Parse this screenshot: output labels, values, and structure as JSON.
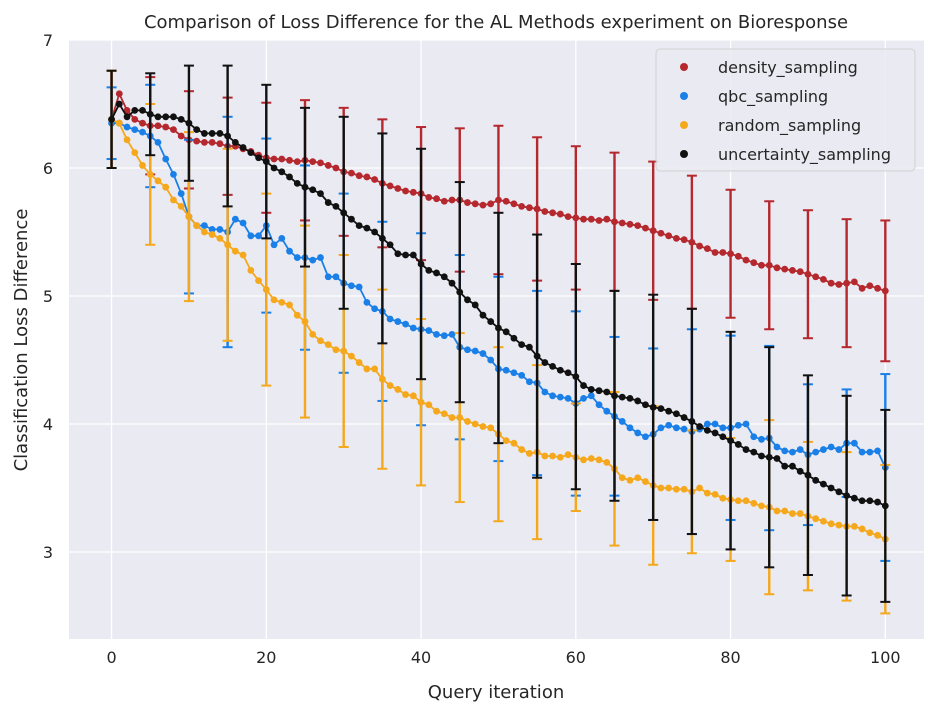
{
  "chart_data": {
    "type": "line",
    "title": "Comparison of Loss Difference for the AL Methods experiment on Bioresponse",
    "xlabel": "Query iteration",
    "ylabel": "Classification Loss Difference",
    "xlim": [
      -5.5,
      105
    ],
    "ylim": [
      2.32,
      7.0
    ],
    "xticks": [
      0,
      20,
      40,
      60,
      80,
      100
    ],
    "yticks": [
      3,
      4,
      5,
      6,
      7
    ],
    "grid": true,
    "legend_position": "top-right",
    "errorbar_every": 5,
    "series": [
      {
        "name": "density_sampling",
        "color": "#b5282e",
        "x": [
          0,
          1,
          2,
          3,
          4,
          5,
          6,
          7,
          8,
          9,
          10,
          11,
          12,
          13,
          14,
          15,
          16,
          17,
          18,
          19,
          20,
          21,
          22,
          23,
          24,
          25,
          26,
          27,
          28,
          29,
          30,
          31,
          32,
          33,
          34,
          35,
          36,
          37,
          38,
          39,
          40,
          41,
          42,
          43,
          44,
          45,
          46,
          47,
          48,
          49,
          50,
          51,
          52,
          53,
          54,
          55,
          56,
          57,
          58,
          59,
          60,
          61,
          62,
          63,
          64,
          65,
          66,
          67,
          68,
          69,
          70,
          71,
          72,
          73,
          74,
          75,
          76,
          77,
          78,
          79,
          80,
          81,
          82,
          83,
          84,
          85,
          86,
          87,
          88,
          89,
          90,
          91,
          92,
          93,
          94,
          95,
          96,
          97,
          98,
          99,
          100
        ],
        "y": [
          6.38,
          6.58,
          6.45,
          6.38,
          6.35,
          6.33,
          6.33,
          6.32,
          6.3,
          6.25,
          6.22,
          6.21,
          6.2,
          6.2,
          6.19,
          6.17,
          6.17,
          6.15,
          6.13,
          6.1,
          6.08,
          6.07,
          6.07,
          6.06,
          6.05,
          6.06,
          6.05,
          6.04,
          6.02,
          6.0,
          5.97,
          5.96,
          5.94,
          5.93,
          5.91,
          5.88,
          5.86,
          5.84,
          5.82,
          5.81,
          5.8,
          5.77,
          5.76,
          5.74,
          5.75,
          5.75,
          5.73,
          5.72,
          5.71,
          5.72,
          5.75,
          5.74,
          5.72,
          5.7,
          5.69,
          5.68,
          5.66,
          5.65,
          5.64,
          5.62,
          5.61,
          5.6,
          5.6,
          5.59,
          5.6,
          5.58,
          5.57,
          5.56,
          5.55,
          5.53,
          5.51,
          5.49,
          5.47,
          5.45,
          5.44,
          5.42,
          5.39,
          5.37,
          5.34,
          5.34,
          5.33,
          5.31,
          5.28,
          5.26,
          5.24,
          5.24,
          5.22,
          5.21,
          5.2,
          5.19,
          5.17,
          5.15,
          5.13,
          5.1,
          5.09,
          5.1,
          5.11,
          5.06,
          5.08,
          5.06,
          5.04
        ],
        "err": [
          0.38,
          0.32,
          0.35,
          0.35,
          0.35,
          0.38,
          0.38,
          0.38,
          0.38,
          0.38,
          0.38,
          0.37,
          0.36,
          0.38,
          0.39,
          0.38,
          0.4,
          0.4,
          0.42,
          0.42,
          0.43,
          0.44,
          0.44,
          0.46,
          0.46,
          0.47,
          0.48,
          0.49,
          0.5,
          0.5,
          0.5,
          0.5,
          0.5,
          0.5,
          0.5,
          0.5,
          0.52,
          0.52,
          0.52,
          0.52,
          0.52,
          0.54,
          0.54,
          0.54,
          0.56,
          0.56,
          0.58,
          0.58,
          0.58,
          0.58,
          0.58,
          0.56,
          0.56,
          0.56,
          0.56,
          0.56,
          0.56,
          0.56,
          0.56,
          0.56,
          0.56,
          0.54,
          0.54,
          0.54,
          0.54,
          0.54,
          0.54,
          0.54,
          0.54,
          0.54,
          0.54,
          0.52,
          0.52,
          0.52,
          0.52,
          0.52,
          0.52,
          0.52,
          0.5,
          0.5,
          0.5,
          0.5,
          0.5,
          0.5,
          0.5,
          0.5,
          0.5,
          0.5,
          0.5,
          0.5,
          0.5,
          0.5,
          0.5,
          0.5,
          0.5,
          0.5,
          0.5,
          0.5,
          0.5,
          0.55,
          0.55
        ]
      },
      {
        "name": "qbc_sampling",
        "color": "#1a80e8",
        "x": [
          0,
          1,
          2,
          3,
          4,
          5,
          6,
          7,
          8,
          9,
          10,
          11,
          12,
          13,
          14,
          15,
          16,
          17,
          18,
          19,
          20,
          21,
          22,
          23,
          24,
          25,
          26,
          27,
          28,
          29,
          30,
          31,
          32,
          33,
          34,
          35,
          36,
          37,
          38,
          39,
          40,
          41,
          42,
          43,
          44,
          45,
          46,
          47,
          48,
          49,
          50,
          51,
          52,
          53,
          54,
          55,
          56,
          57,
          58,
          59,
          60,
          61,
          62,
          63,
          64,
          65,
          66,
          67,
          68,
          69,
          70,
          71,
          72,
          73,
          74,
          75,
          76,
          77,
          78,
          79,
          80,
          81,
          82,
          83,
          84,
          85,
          86,
          87,
          88,
          89,
          90,
          91,
          92,
          93,
          94,
          95,
          96,
          97,
          98,
          99,
          100
        ],
        "y": [
          6.35,
          6.35,
          6.32,
          6.3,
          6.28,
          6.25,
          6.2,
          6.07,
          5.95,
          5.8,
          5.62,
          5.55,
          5.55,
          5.52,
          5.52,
          5.5,
          5.6,
          5.57,
          5.47,
          5.47,
          5.55,
          5.4,
          5.45,
          5.35,
          5.3,
          5.3,
          5.28,
          5.3,
          5.15,
          5.15,
          5.1,
          5.08,
          5.07,
          4.95,
          4.9,
          4.88,
          4.82,
          4.8,
          4.78,
          4.75,
          4.74,
          4.73,
          4.7,
          4.69,
          4.7,
          4.6,
          4.58,
          4.57,
          4.55,
          4.5,
          4.43,
          4.42,
          4.4,
          4.38,
          4.33,
          4.32,
          4.25,
          4.22,
          4.21,
          4.2,
          4.16,
          4.2,
          4.22,
          4.15,
          4.1,
          4.06,
          4.02,
          3.97,
          3.93,
          3.9,
          3.92,
          3.97,
          3.99,
          3.97,
          3.96,
          3.94,
          3.96,
          4.0,
          4.0,
          3.97,
          3.97,
          3.99,
          4.0,
          3.9,
          3.88,
          3.89,
          3.82,
          3.79,
          3.78,
          3.8,
          3.76,
          3.78,
          3.8,
          3.82,
          3.8,
          3.85,
          3.85,
          3.78,
          3.78,
          3.79,
          3.66
        ],
        "err": [
          0.28,
          0.28,
          0.3,
          0.32,
          0.35,
          0.4,
          0.42,
          0.45,
          0.5,
          0.55,
          0.6,
          0.62,
          0.65,
          0.7,
          0.8,
          0.9,
          0.85,
          0.8,
          0.75,
          0.7,
          0.68,
          0.7,
          0.72,
          0.72,
          0.72,
          0.72,
          0.7,
          0.7,
          0.7,
          0.7,
          0.7,
          0.7,
          0.7,
          0.7,
          0.7,
          0.7,
          0.8,
          0.8,
          0.75,
          0.75,
          0.75,
          0.75,
          0.75,
          0.72,
          0.72,
          0.72,
          0.72,
          0.72,
          0.72,
          0.72,
          0.72,
          0.7,
          0.7,
          0.7,
          0.7,
          0.72,
          0.72,
          0.72,
          0.72,
          0.72,
          0.72,
          0.72,
          0.7,
          0.7,
          0.7,
          0.62,
          0.65,
          0.67,
          0.67,
          0.67,
          0.67,
          0.67,
          0.67,
          0.67,
          0.67,
          0.8,
          0.72,
          0.72,
          0.7,
          0.7,
          0.72,
          0.72,
          0.72,
          0.72,
          0.72,
          0.72,
          0.72,
          0.72,
          0.72,
          0.72,
          0.55,
          0.55,
          0.55,
          0.5,
          0.48,
          0.42,
          0.42,
          0.42,
          0.45,
          0.48,
          0.73
        ]
      },
      {
        "name": "random_sampling",
        "color": "#f5a81c",
        "x": [
          0,
          1,
          2,
          3,
          4,
          5,
          6,
          7,
          8,
          9,
          10,
          11,
          12,
          13,
          14,
          15,
          16,
          17,
          18,
          19,
          20,
          21,
          22,
          23,
          24,
          25,
          26,
          27,
          28,
          29,
          30,
          31,
          32,
          33,
          34,
          35,
          36,
          37,
          38,
          39,
          40,
          41,
          42,
          43,
          44,
          45,
          46,
          47,
          48,
          49,
          50,
          51,
          52,
          53,
          54,
          55,
          56,
          57,
          58,
          59,
          60,
          61,
          62,
          63,
          64,
          65,
          66,
          67,
          68,
          69,
          70,
          71,
          72,
          73,
          74,
          75,
          76,
          77,
          78,
          79,
          80,
          81,
          82,
          83,
          84,
          85,
          86,
          87,
          88,
          89,
          90,
          91,
          92,
          93,
          94,
          95,
          96,
          97,
          98,
          99,
          100
        ],
        "y": [
          6.38,
          6.35,
          6.22,
          6.12,
          6.02,
          5.95,
          5.9,
          5.85,
          5.75,
          5.7,
          5.62,
          5.55,
          5.5,
          5.48,
          5.45,
          5.4,
          5.35,
          5.32,
          5.2,
          5.12,
          5.05,
          4.97,
          4.95,
          4.93,
          4.85,
          4.8,
          4.7,
          4.65,
          4.62,
          4.58,
          4.57,
          4.53,
          4.48,
          4.43,
          4.43,
          4.35,
          4.3,
          4.27,
          4.23,
          4.22,
          4.17,
          4.15,
          4.1,
          4.08,
          4.05,
          4.05,
          4.02,
          4.0,
          3.98,
          3.97,
          3.92,
          3.87,
          3.85,
          3.8,
          3.77,
          3.78,
          3.75,
          3.75,
          3.74,
          3.76,
          3.74,
          3.72,
          3.73,
          3.72,
          3.7,
          3.65,
          3.58,
          3.56,
          3.58,
          3.55,
          3.52,
          3.5,
          3.5,
          3.49,
          3.49,
          3.47,
          3.5,
          3.46,
          3.45,
          3.42,
          3.41,
          3.4,
          3.4,
          3.38,
          3.36,
          3.35,
          3.32,
          3.32,
          3.3,
          3.3,
          3.28,
          3.26,
          3.24,
          3.22,
          3.21,
          3.2,
          3.2,
          3.18,
          3.15,
          3.13,
          3.1
        ],
        "err": [
          0.38,
          0.4,
          0.42,
          0.45,
          0.5,
          0.55,
          0.58,
          0.6,
          0.62,
          0.64,
          0.66,
          0.68,
          0.7,
          0.72,
          0.74,
          0.75,
          0.75,
          0.75,
          0.75,
          0.75,
          0.75,
          0.75,
          0.75,
          0.75,
          0.75,
          0.75,
          0.75,
          0.75,
          0.75,
          0.75,
          0.75,
          0.75,
          0.7,
          0.7,
          0.7,
          0.7,
          0.68,
          0.68,
          0.65,
          0.65,
          0.65,
          0.65,
          0.66,
          0.66,
          0.66,
          0.66,
          0.66,
          0.67,
          0.67,
          0.68,
          0.68,
          0.68,
          0.68,
          0.68,
          0.68,
          0.68,
          0.68,
          0.68,
          0.68,
          0.68,
          0.42,
          0.42,
          0.42,
          0.4,
          0.4,
          0.6,
          0.6,
          0.6,
          0.6,
          0.6,
          0.62,
          0.6,
          0.6,
          0.6,
          0.55,
          0.48,
          0.5,
          0.5,
          0.5,
          0.5,
          0.48,
          0.55,
          0.6,
          0.62,
          0.65,
          0.68,
          0.6,
          0.6,
          0.58,
          0.58,
          0.58,
          0.58,
          0.6,
          0.6,
          0.6,
          0.58,
          0.58,
          0.58,
          0.58,
          0.58,
          0.58
        ]
      },
      {
        "name": "uncertainty_sampling",
        "color": "#111111",
        "x": [
          0,
          1,
          2,
          3,
          4,
          5,
          6,
          7,
          8,
          9,
          10,
          11,
          12,
          13,
          14,
          15,
          16,
          17,
          18,
          19,
          20,
          21,
          22,
          23,
          24,
          25,
          26,
          27,
          28,
          29,
          30,
          31,
          32,
          33,
          34,
          35,
          36,
          37,
          38,
          39,
          40,
          41,
          42,
          43,
          44,
          45,
          46,
          47,
          48,
          49,
          50,
          51,
          52,
          53,
          54,
          55,
          56,
          57,
          58,
          59,
          60,
          61,
          62,
          63,
          64,
          65,
          66,
          67,
          68,
          69,
          70,
          71,
          72,
          73,
          74,
          75,
          76,
          77,
          78,
          79,
          80,
          81,
          82,
          83,
          84,
          85,
          86,
          87,
          88,
          89,
          90,
          91,
          92,
          93,
          94,
          95,
          96,
          97,
          98,
          99,
          100
        ],
        "y": [
          6.38,
          6.5,
          6.4,
          6.45,
          6.45,
          6.42,
          6.4,
          6.4,
          6.4,
          6.38,
          6.35,
          6.3,
          6.27,
          6.27,
          6.27,
          6.25,
          6.2,
          6.16,
          6.12,
          6.08,
          6.05,
          6.0,
          5.97,
          5.93,
          5.88,
          5.85,
          5.83,
          5.8,
          5.73,
          5.7,
          5.65,
          5.6,
          5.55,
          5.53,
          5.5,
          5.45,
          5.4,
          5.33,
          5.32,
          5.32,
          5.25,
          5.2,
          5.18,
          5.15,
          5.1,
          5.03,
          4.97,
          4.93,
          4.85,
          4.8,
          4.75,
          4.72,
          4.67,
          4.62,
          4.6,
          4.53,
          4.48,
          4.45,
          4.42,
          4.4,
          4.37,
          4.3,
          4.27,
          4.26,
          4.25,
          4.22,
          4.21,
          4.2,
          4.18,
          4.15,
          4.13,
          4.12,
          4.1,
          4.08,
          4.05,
          4.02,
          3.98,
          3.95,
          3.93,
          3.9,
          3.87,
          3.84,
          3.8,
          3.78,
          3.75,
          3.74,
          3.73,
          3.67,
          3.67,
          3.63,
          3.6,
          3.56,
          3.53,
          3.5,
          3.47,
          3.44,
          3.42,
          3.4,
          3.4,
          3.39,
          3.36
        ],
        "err": [
          0.38,
          0.35,
          0.3,
          0.3,
          0.3,
          0.32,
          0.35,
          0.38,
          0.4,
          0.42,
          0.45,
          0.48,
          0.5,
          0.52,
          0.54,
          0.55,
          0.55,
          0.55,
          0.55,
          0.56,
          0.6,
          0.6,
          0.6,
          0.6,
          0.62,
          0.62,
          0.62,
          0.65,
          0.7,
          0.72,
          0.75,
          0.75,
          0.76,
          0.78,
          0.8,
          0.82,
          0.82,
          0.83,
          0.84,
          0.86,
          0.9,
          0.9,
          0.88,
          0.86,
          0.86,
          0.86,
          0.86,
          0.86,
          0.86,
          0.88,
          0.9,
          0.9,
          0.92,
          0.92,
          0.92,
          0.95,
          0.92,
          0.9,
          0.88,
          0.86,
          0.88,
          0.85,
          0.83,
          0.82,
          0.82,
          0.82,
          0.85,
          0.85,
          0.87,
          0.87,
          0.88,
          0.88,
          0.88,
          0.88,
          0.86,
          0.88,
          0.86,
          0.84,
          0.84,
          0.82,
          0.85,
          0.88,
          0.88,
          0.86,
          0.86,
          0.86,
          0.86,
          0.82,
          0.82,
          0.8,
          0.78,
          0.78,
          0.78,
          0.78,
          0.78,
          0.78,
          0.76,
          0.75,
          0.75,
          0.75,
          0.75
        ]
      }
    ]
  }
}
